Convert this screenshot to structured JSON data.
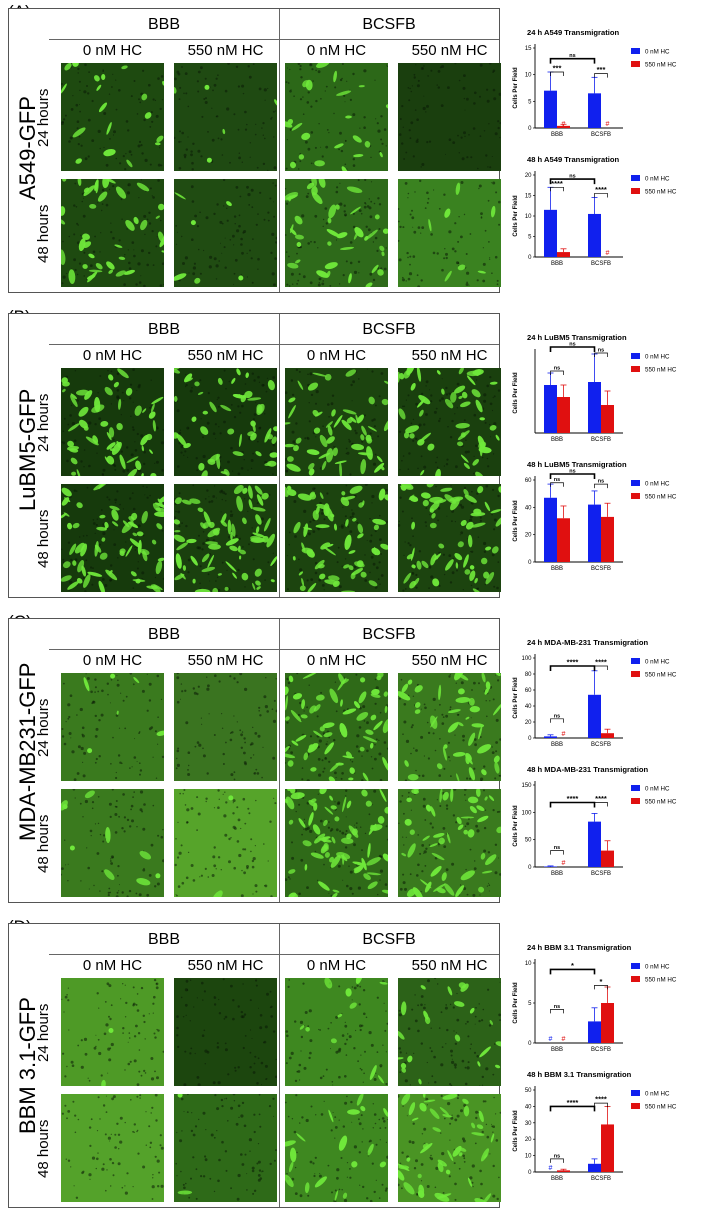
{
  "colors": {
    "zero": "#1020ee",
    "hc": "#e01010",
    "cells": "#6fe83a"
  },
  "column_groups": [
    "BBB",
    "BCSFB"
  ],
  "column_labels": [
    "0 nM HC",
    "550 nM HC",
    "0 nM HC",
    "550 nM HC"
  ],
  "row_labels": [
    "24 hours",
    "48 hours"
  ],
  "panels": [
    {
      "id": "A",
      "label": "(A)",
      "cell_line": "A549-GFP",
      "densities": [
        [
          0.25,
          0.04,
          0.3,
          0.0
        ],
        [
          0.55,
          0.05,
          0.55,
          0.1
        ]
      ],
      "backgrounds": [
        [
          "#1e4a10",
          "#1f4a12",
          "#2c6818",
          "#1a3f0e"
        ],
        [
          "#1e4a10",
          "#204c12",
          "#2e6a1a",
          "#3a8220"
        ]
      ]
    },
    {
      "id": "B",
      "label": "(B)",
      "cell_line": "LuBM5-GFP",
      "densities": [
        [
          0.75,
          0.7,
          0.75,
          0.7
        ],
        [
          0.95,
          0.95,
          0.9,
          0.85
        ]
      ],
      "backgrounds": [
        [
          "#163a0c",
          "#163a0c",
          "#1c440f",
          "#1a400e"
        ],
        [
          "#163a0c",
          "#1a400e",
          "#1c440f",
          "#1c440f"
        ]
      ]
    },
    {
      "id": "C",
      "label": "(C)",
      "cell_line": "MDA-MB231-GFP",
      "densities": [
        [
          0.05,
          0.0,
          0.85,
          0.6
        ],
        [
          0.08,
          0.02,
          0.95,
          0.65
        ]
      ],
      "backgrounds": [
        [
          "#3a7a1e",
          "#3a7420",
          "#2f6a18",
          "#3a7a1e"
        ],
        [
          "#3a7a1e",
          "#56a42a",
          "#2f6a18",
          "#3a7a1e"
        ]
      ]
    },
    {
      "id": "D",
      "label": "(D)",
      "cell_line": "BBM 3.1-GFP",
      "densities": [
        [
          0.02,
          0.0,
          0.15,
          0.3
        ],
        [
          0.0,
          0.02,
          0.25,
          0.6
        ]
      ],
      "backgrounds": [
        [
          "#4e9a26",
          "#1c460e",
          "#3e8820",
          "#2c6218"
        ],
        [
          "#54a22a",
          "#2e6a18",
          "#3e8820",
          "#4a9424"
        ]
      ]
    }
  ],
  "chart_data": [
    {
      "type": "bar",
      "title": "24 h A549 Transmigration",
      "ylabel": "Cells Per Field",
      "categories": [
        "BBB",
        "BCSFB"
      ],
      "ylim": [
        0,
        15
      ],
      "yticks": [
        0,
        5,
        10,
        15
      ],
      "series": [
        {
          "name": "0 nM HC",
          "values": [
            7,
            6.5
          ],
          "errors": [
            3.5,
            3
          ]
        },
        {
          "name": "550 nM HC",
          "values": [
            0.4,
            0
          ],
          "errors": [
            0.3,
            0
          ]
        }
      ],
      "annotations": [
        {
          "label": "***",
          "x1": 0,
          "x2": 1,
          "y": 10.5,
          "kind": "pair",
          "group": 0
        },
        {
          "label": "***",
          "x1": 0,
          "x2": 1,
          "y": 10.2,
          "kind": "pair",
          "group": 1
        },
        {
          "label": "ns",
          "x1": 0,
          "x2": 0,
          "y": 13,
          "kind": "between",
          "bold": true
        }
      ],
      "hash_marks": [
        {
          "group": 0,
          "series": 1,
          "label": "#"
        },
        {
          "group": 1,
          "series": 1,
          "label": "#"
        }
      ]
    },
    {
      "type": "bar",
      "title": "48 h A549 Transmigration",
      "ylabel": "Cells Per Field",
      "categories": [
        "BBB",
        "BCSFB"
      ],
      "ylim": [
        0,
        20
      ],
      "yticks": [
        0,
        5,
        10,
        15,
        20
      ],
      "series": [
        {
          "name": "0 nM HC",
          "values": [
            11.5,
            10.5
          ],
          "errors": [
            5.5,
            4
          ]
        },
        {
          "name": "550 nM HC",
          "values": [
            1.2,
            0
          ],
          "errors": [
            0.8,
            0
          ]
        }
      ],
      "annotations": [
        {
          "label": "****",
          "x1": 0,
          "x2": 1,
          "y": 17,
          "kind": "pair",
          "group": 0
        },
        {
          "label": "****",
          "x1": 0,
          "x2": 1,
          "y": 15.5,
          "kind": "pair",
          "group": 1
        },
        {
          "label": "ns",
          "x1": 0,
          "x2": 0,
          "y": 19,
          "kind": "between",
          "bold": true
        }
      ],
      "hash_marks": [
        {
          "group": 1,
          "series": 1,
          "label": "#"
        }
      ]
    },
    {
      "type": "bar",
      "title": "24 h LuBM5 Transmigration",
      "ylabel": "Cells Per Field",
      "categories": [
        "BBB",
        "BCSFB"
      ],
      "ylim": [
        0,
        40
      ],
      "yticks": [],
      "series": [
        {
          "name": "0 nM HC",
          "values": [
            24,
            25.5
          ],
          "errors": [
            6,
            14
          ]
        },
        {
          "name": "550 nM HC",
          "values": [
            18,
            14
          ],
          "errors": [
            6,
            7
          ]
        }
      ],
      "annotations": [
        {
          "label": "ns",
          "x1": 0,
          "x2": 1,
          "y": 31,
          "kind": "pair",
          "group": 0
        },
        {
          "label": "ns",
          "x1": 0,
          "x2": 1,
          "y": 40,
          "kind": "pair",
          "group": 1
        },
        {
          "label": "ns",
          "x1": 0,
          "x2": 0,
          "y": 44,
          "kind": "between",
          "bold": true
        }
      ],
      "hash_marks": []
    },
    {
      "type": "bar",
      "title": "48 h LuBM5 Transmigration",
      "ylabel": "Cells Per Field",
      "categories": [
        "BBB",
        "BCSFB"
      ],
      "ylim": [
        0,
        60
      ],
      "yticks": [
        0,
        20,
        40,
        60
      ],
      "series": [
        {
          "name": "0 nM HC",
          "values": [
            47,
            42
          ],
          "errors": [
            10,
            10
          ]
        },
        {
          "name": "550 nM HC",
          "values": [
            32,
            33
          ],
          "errors": [
            9,
            10
          ]
        }
      ],
      "annotations": [
        {
          "label": "ns",
          "x1": 0,
          "x2": 1,
          "y": 58,
          "kind": "pair",
          "group": 0
        },
        {
          "label": "ns",
          "x1": 0,
          "x2": 1,
          "y": 57,
          "kind": "pair",
          "group": 1
        },
        {
          "label": "ns",
          "x1": 0,
          "x2": 0,
          "y": 65,
          "kind": "between",
          "bold": true
        }
      ],
      "hash_marks": []
    },
    {
      "type": "bar",
      "title": "24 h MDA-MB-231 Transmigration",
      "ylabel": "Cells Per Field",
      "categories": [
        "BBB",
        "BCSFB"
      ],
      "ylim": [
        0,
        100
      ],
      "yticks": [
        0,
        20,
        40,
        60,
        80,
        100
      ],
      "series": [
        {
          "name": "0 nM HC",
          "values": [
            2,
            54
          ],
          "errors": [
            2,
            30
          ]
        },
        {
          "name": "550 nM HC",
          "values": [
            0,
            6
          ],
          "errors": [
            0,
            5
          ]
        }
      ],
      "annotations": [
        {
          "label": "ns",
          "x1": 0,
          "x2": 1,
          "y": 24,
          "kind": "pair",
          "group": 0
        },
        {
          "label": "****",
          "x1": 0,
          "x2": 1,
          "y": 90,
          "kind": "pair",
          "group": 1
        },
        {
          "label": "****",
          "x1": 0,
          "x2": 0,
          "y": 90,
          "kind": "between",
          "bold": true
        }
      ],
      "hash_marks": [
        {
          "group": 0,
          "series": 1,
          "label": "#"
        }
      ]
    },
    {
      "type": "bar",
      "title": "48 h MDA-MB-231 Transmigration",
      "ylabel": "Cells Per Field",
      "categories": [
        "BBB",
        "BCSFB"
      ],
      "ylim": [
        0,
        150
      ],
      "yticks": [
        0,
        50,
        100,
        150
      ],
      "series": [
        {
          "name": "0 nM HC",
          "values": [
            1,
            83
          ],
          "errors": [
            1,
            15
          ]
        },
        {
          "name": "550 nM HC",
          "values": [
            0,
            30
          ],
          "errors": [
            0,
            18
          ]
        }
      ],
      "annotations": [
        {
          "label": "ns",
          "x1": 0,
          "x2": 1,
          "y": 30,
          "kind": "pair",
          "group": 0
        },
        {
          "label": "****",
          "x1": 0,
          "x2": 1,
          "y": 118,
          "kind": "pair",
          "group": 1
        },
        {
          "label": "****",
          "x1": 0,
          "x2": 0,
          "y": 118,
          "kind": "between",
          "bold": true
        }
      ],
      "hash_marks": [
        {
          "group": 0,
          "series": 1,
          "label": "#"
        }
      ]
    },
    {
      "type": "bar",
      "title": "24 h BBM 3.1 Transmigration",
      "ylabel": "Cells Per Field",
      "categories": [
        "BBB",
        "BCSFB"
      ],
      "ylim": [
        0,
        10
      ],
      "yticks": [
        0,
        5,
        10
      ],
      "series": [
        {
          "name": "0 nM HC",
          "values": [
            0,
            2.7
          ],
          "errors": [
            0,
            1.7
          ]
        },
        {
          "name": "550 nM HC",
          "values": [
            0,
            5
          ],
          "errors": [
            0,
            2
          ]
        }
      ],
      "annotations": [
        {
          "label": "ns",
          "x1": 0,
          "x2": 1,
          "y": 4.2,
          "kind": "pair",
          "group": 0
        },
        {
          "label": "*",
          "x1": 0,
          "x2": 1,
          "y": 7.2,
          "kind": "pair",
          "group": 1
        },
        {
          "label": "*",
          "x1": 0,
          "x2": 0,
          "y": 9.2,
          "kind": "between",
          "bold": true
        }
      ],
      "hash_marks": [
        {
          "group": 0,
          "series": 0,
          "label": "#"
        },
        {
          "group": 0,
          "series": 1,
          "label": "#"
        }
      ]
    },
    {
      "type": "bar",
      "title": "48 h BBM 3.1 Transmigration",
      "ylabel": "Cells Per Field",
      "categories": [
        "BBB",
        "BCSFB"
      ],
      "ylim": [
        0,
        50
      ],
      "yticks": [
        0,
        10,
        20,
        30,
        40,
        50
      ],
      "series": [
        {
          "name": "0 nM HC",
          "values": [
            0,
            5
          ],
          "errors": [
            0,
            3
          ]
        },
        {
          "name": "550 nM HC",
          "values": [
            1,
            29
          ],
          "errors": [
            0.7,
            11
          ]
        }
      ],
      "annotations": [
        {
          "label": "ns",
          "x1": 0,
          "x2": 1,
          "y": 8,
          "kind": "pair",
          "group": 0
        },
        {
          "label": "****",
          "x1": 0,
          "x2": 1,
          "y": 42,
          "kind": "pair",
          "group": 1
        },
        {
          "label": "****",
          "x1": 0,
          "x2": 0,
          "y": 40,
          "kind": "between",
          "bold": true
        }
      ],
      "hash_marks": [
        {
          "group": 0,
          "series": 0,
          "label": "#"
        }
      ]
    }
  ]
}
